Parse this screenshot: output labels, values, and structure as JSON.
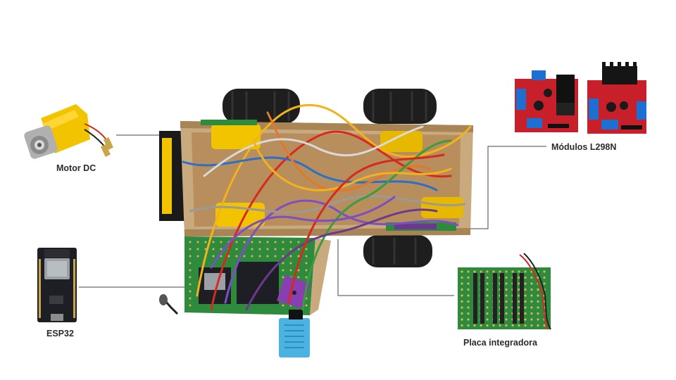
{
  "labels": {
    "motor": "Motor DC",
    "esp32": "ESP32",
    "l298n": "Módulos L298N",
    "placa": "Placa integradora"
  },
  "colors": {
    "cardboard": "#c9a97e",
    "wheel": "#1e1e1e",
    "pcb_green": "#2e8b3e",
    "l298n_red": "#c8202b",
    "esp32_black": "#1d1f24",
    "dht_blue": "#4bb3e0",
    "gy_purple": "#8a3fb0",
    "connector_line": "#444444",
    "motor_yellow": "#f2c400"
  },
  "wires": [
    "#f2b21b",
    "#d62a1e",
    "#7c4fc4",
    "#2a6fc9",
    "#9a9a9a",
    "#e07a2a",
    "#3a9c3a",
    "#6b3a8e",
    "#d9d9d9"
  ]
}
